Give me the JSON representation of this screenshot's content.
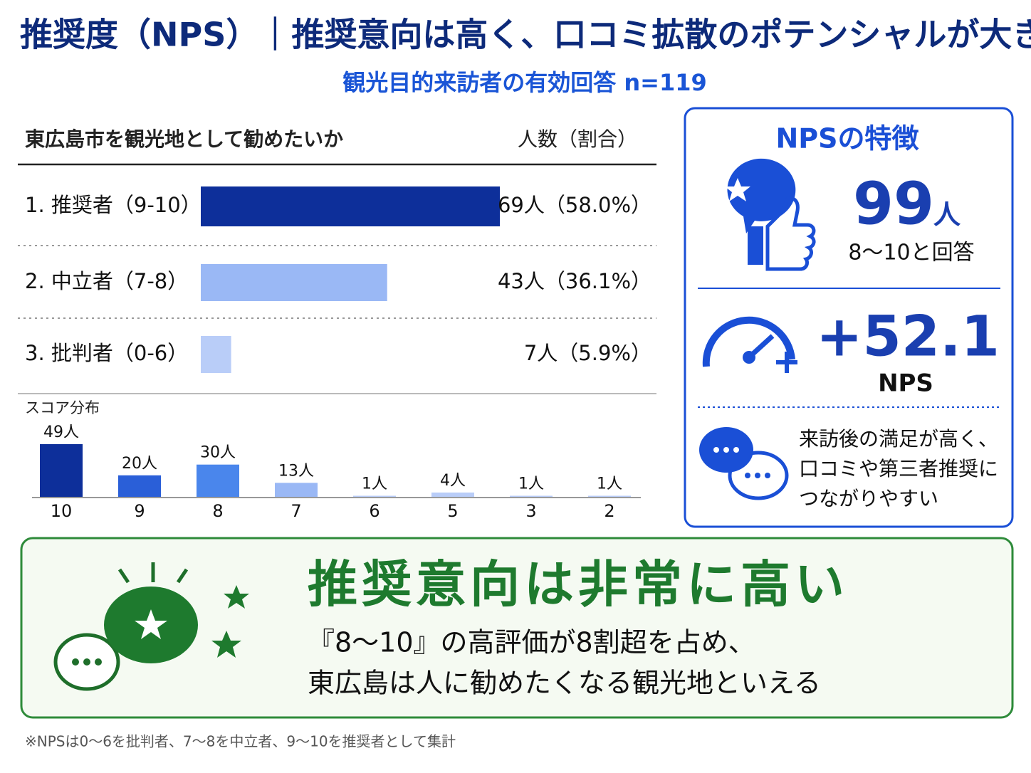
{
  "header": {
    "title": "推奨度（NPS）｜推奨意向は高く、口コミ拡散のポテンシャルが大きい",
    "subtitle": "観光目的来訪者の有効回答 n=119"
  },
  "chart_data": [
    {
      "type": "barh",
      "title": "東広島市を観光地として勧めたいか",
      "value_header": "人数（割合）",
      "categories": [
        "1. 推奨者（9-10）",
        "2. 中立者（7-8）",
        "3. 批判者（0-6）"
      ],
      "values": [
        69,
        43,
        7
      ],
      "value_labels": [
        "69人（58.0%）",
        "43人（36.1%）",
        "7人（5.9%）"
      ],
      "colors": [
        "#0d2f9a",
        "#9ab8f5",
        "#b9cdf8"
      ]
    },
    {
      "type": "bar",
      "title": "スコア分布",
      "categories": [
        "10",
        "9",
        "8",
        "7",
        "6",
        "5",
        "3",
        "2"
      ],
      "values": [
        49,
        20,
        30,
        13,
        1,
        4,
        1,
        1
      ],
      "value_labels": [
        "49人",
        "20人",
        "30人",
        "13人",
        "1人",
        "4人",
        "1人",
        "1人"
      ],
      "colors": [
        "#0d2f9a",
        "#2a5fd8",
        "#4a86ec",
        "#9ab8f5",
        "#b9cdf8",
        "#b9cdf8",
        "#b9cdf8",
        "#b9cdf8"
      ]
    }
  ],
  "panel": {
    "title": "NPSの特徴",
    "promoters": "99",
    "promoters_unit": "人",
    "promoters_note": "8～10と回答",
    "nps": "+52.1",
    "nps_label": "NPS",
    "lines": [
      "来訪後の満足が高く、",
      "口コミや第三者推奨に",
      "つながりやすい"
    ]
  },
  "banner": {
    "headline": "推奨意向は非常に高い",
    "lines": [
      "『8～10』の高評価が8割超を占め、",
      "東広島は人に勧めたくなる観光地といえる"
    ]
  },
  "footnote": "※NPSは0～6を批判者、7～8を中立者、9～10を推奨者として集計"
}
